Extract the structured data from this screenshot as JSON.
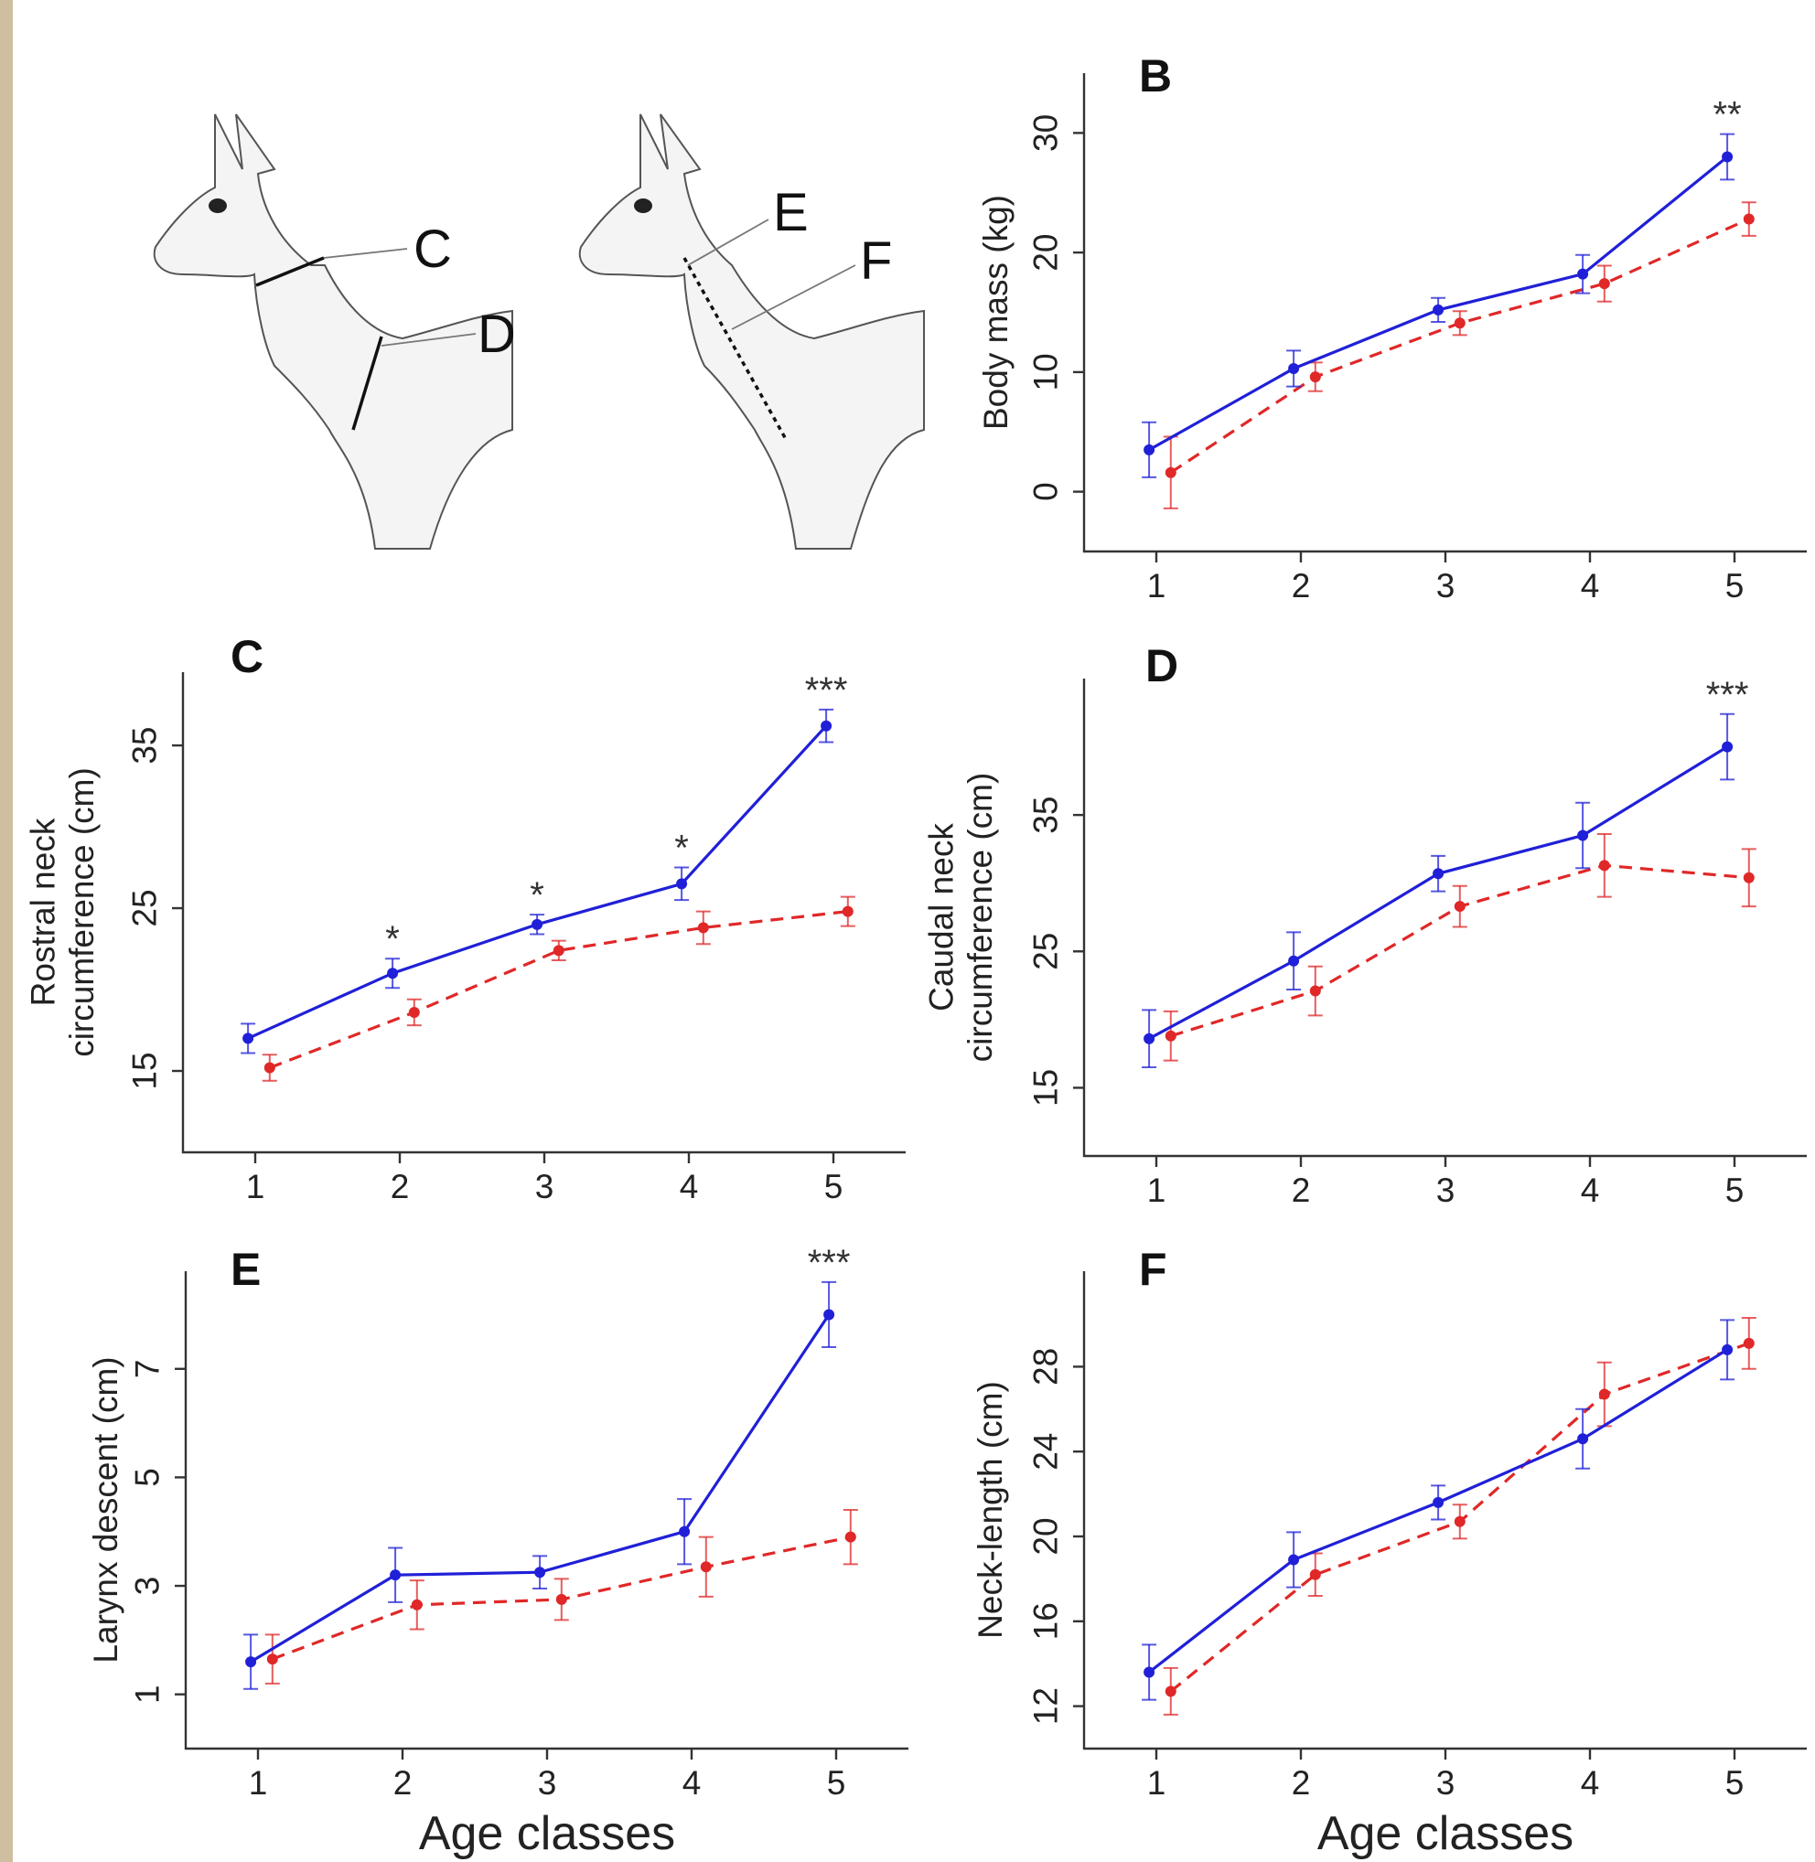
{
  "colors": {
    "series_blue": "#2020d8",
    "series_red": "#e02828",
    "axis": "#333333"
  },
  "illustration": {
    "labels": [
      "C",
      "D",
      "E",
      "F"
    ]
  },
  "chart_data": [
    {
      "id": "B",
      "type": "line",
      "panel_label": "B",
      "ylabel": "Body mass (kg)",
      "xlabel": "",
      "x": [
        1,
        2,
        3,
        4,
        5
      ],
      "xlim": [
        0.5,
        5.5
      ],
      "ylim": [
        -5,
        35
      ],
      "yticks": [
        0,
        10,
        20,
        30
      ],
      "series": [
        {
          "color": "blue",
          "dash": false,
          "values": [
            3.5,
            10.3,
            15.2,
            18.2,
            28.0
          ],
          "err": [
            2.3,
            1.5,
            1.0,
            1.6,
            1.9
          ],
          "x_offset": -0.05
        },
        {
          "color": "red",
          "dash": true,
          "values": [
            1.6,
            9.6,
            14.1,
            17.4,
            22.8
          ],
          "err": [
            3.0,
            1.2,
            1.0,
            1.5,
            1.4
          ],
          "x_offset": 0.1
        }
      ],
      "significance": [
        {
          "x": 5,
          "label": "**"
        }
      ]
    },
    {
      "id": "C",
      "type": "line",
      "panel_label": "C",
      "ylabel": "Rostral neck circumference (cm)",
      "xlabel": "",
      "x": [
        1,
        2,
        3,
        4,
        5
      ],
      "xlim": [
        0.5,
        5.5
      ],
      "ylim": [
        10,
        39.5
      ],
      "yticks": [
        15,
        25,
        35
      ],
      "series": [
        {
          "color": "blue",
          "dash": false,
          "values": [
            17.0,
            21.0,
            24.0,
            26.5,
            36.2
          ],
          "err": [
            0.9,
            0.9,
            0.6,
            1.0,
            1.0
          ],
          "x_offset": -0.05
        },
        {
          "color": "red",
          "dash": true,
          "values": [
            15.2,
            18.6,
            22.4,
            23.8,
            24.8
          ],
          "err": [
            0.8,
            0.8,
            0.6,
            1.0,
            0.9
          ],
          "x_offset": 0.1
        }
      ],
      "significance": [
        {
          "x": 2,
          "label": "*"
        },
        {
          "x": 3,
          "label": "*"
        },
        {
          "x": 4,
          "label": "*"
        },
        {
          "x": 5,
          "label": "***"
        }
      ]
    },
    {
      "id": "D",
      "type": "line",
      "panel_label": "D",
      "ylabel": "Caudal neck circumference (cm)",
      "xlabel": "",
      "x": [
        1,
        2,
        3,
        4,
        5
      ],
      "xlim": [
        0.5,
        5.5
      ],
      "ylim": [
        10,
        45
      ],
      "yticks": [
        15,
        25,
        35
      ],
      "series": [
        {
          "color": "blue",
          "dash": false,
          "values": [
            18.6,
            24.3,
            30.7,
            33.5,
            40.0
          ],
          "err": [
            2.1,
            2.1,
            1.3,
            2.4,
            2.4
          ],
          "x_offset": -0.05
        },
        {
          "color": "red",
          "dash": true,
          "values": [
            18.8,
            22.1,
            28.3,
            31.3,
            30.4
          ],
          "err": [
            1.8,
            1.8,
            1.5,
            2.3,
            2.1
          ],
          "x_offset": 0.1
        }
      ],
      "significance": [
        {
          "x": 5,
          "label": "***"
        }
      ]
    },
    {
      "id": "E",
      "type": "line",
      "panel_label": "E",
      "ylabel": "Larynx descent (cm)",
      "xlabel": "Age classes",
      "x": [
        1,
        2,
        3,
        4,
        5
      ],
      "xlim": [
        0.5,
        5.5
      ],
      "ylim": [
        0,
        8.8
      ],
      "yticks": [
        1,
        3,
        5,
        7
      ],
      "series": [
        {
          "color": "blue",
          "dash": false,
          "values": [
            1.6,
            3.2,
            3.25,
            4.0,
            8.0
          ],
          "err": [
            0.5,
            0.5,
            0.3,
            0.6,
            0.6
          ],
          "x_offset": -0.05
        },
        {
          "color": "red",
          "dash": true,
          "values": [
            1.65,
            2.65,
            2.75,
            3.35,
            3.9
          ],
          "err": [
            0.45,
            0.45,
            0.38,
            0.55,
            0.5
          ],
          "x_offset": 0.1
        }
      ],
      "significance": [
        {
          "x": 5,
          "label": "***"
        }
      ]
    },
    {
      "id": "F",
      "type": "line",
      "panel_label": "F",
      "ylabel": "Neck-length (cm)",
      "xlabel": "Age classes",
      "x": [
        1,
        2,
        3,
        4,
        5
      ],
      "xlim": [
        0.5,
        5.5
      ],
      "ylim": [
        10,
        32.5
      ],
      "yticks": [
        12,
        16,
        20,
        24,
        28
      ],
      "series": [
        {
          "color": "blue",
          "dash": false,
          "values": [
            13.6,
            18.9,
            21.6,
            24.6,
            28.8
          ],
          "err": [
            1.3,
            1.3,
            0.8,
            1.4,
            1.4
          ],
          "x_offset": -0.05
        },
        {
          "color": "red",
          "dash": true,
          "values": [
            12.7,
            18.2,
            20.7,
            26.7,
            29.1
          ],
          "err": [
            1.1,
            1.0,
            0.8,
            1.5,
            1.2
          ],
          "x_offset": 0.1
        }
      ],
      "significance": []
    }
  ]
}
